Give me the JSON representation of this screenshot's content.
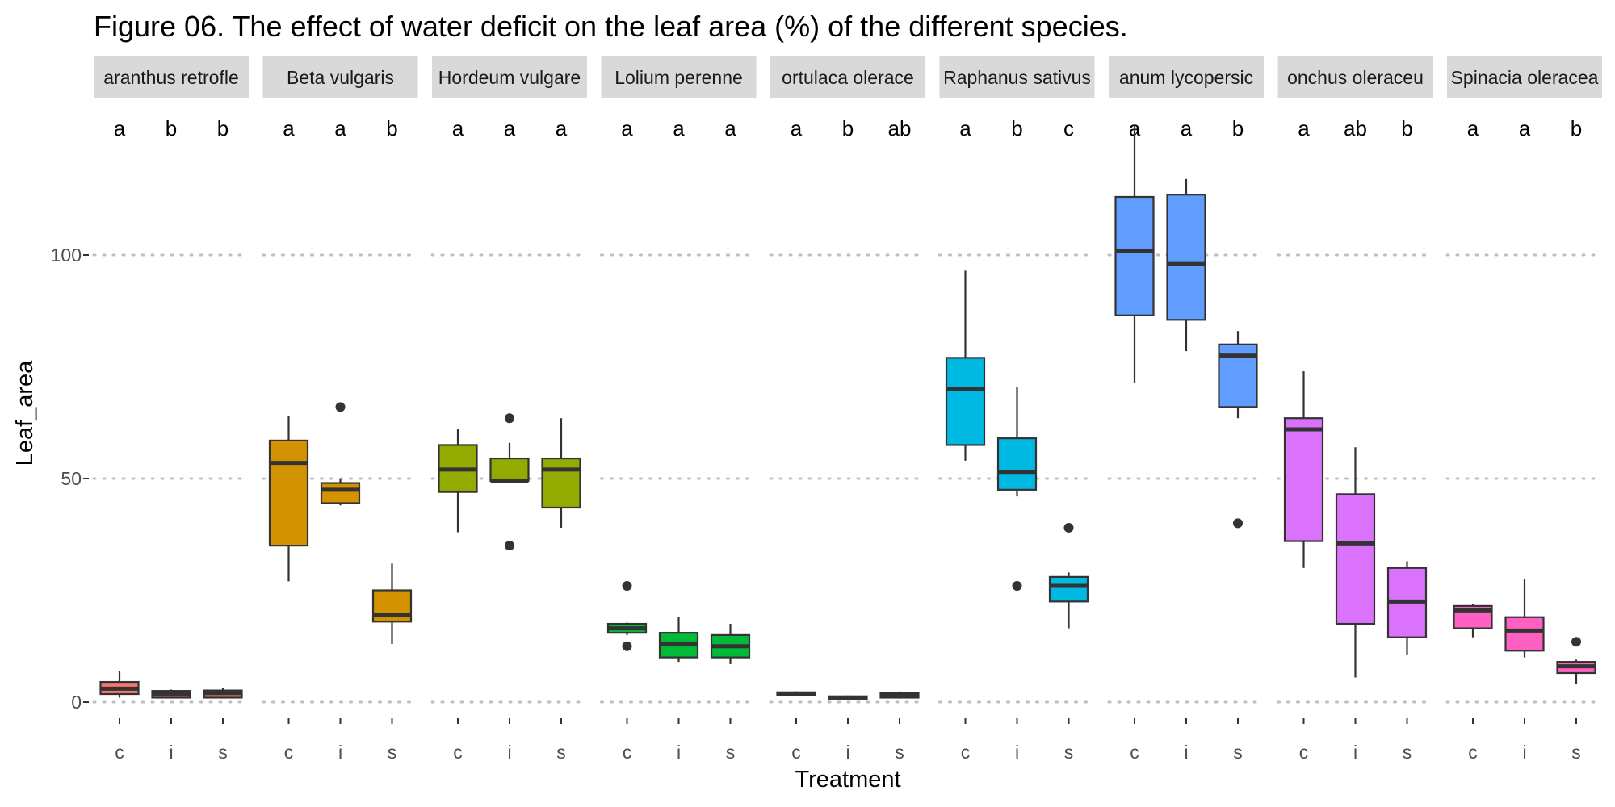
{
  "chart_data": {
    "type": "boxplot",
    "title": "Figure 06. The effect of water deficit  on the leaf area (%) of the different species.",
    "xlabel": "Treatment",
    "ylabel": "Leaf_area",
    "ylim": [
      -4,
      133
    ],
    "yticks": [
      0,
      50,
      100
    ],
    "grid": "horizontal dotted major",
    "legend": "none",
    "treatments": [
      "c",
      "i",
      "s"
    ],
    "panels": [
      {
        "species": "Amaranthus retroflexus",
        "strip_label": "aranthus retrofle",
        "color": "#F8766D",
        "letters": [
          "a",
          "b",
          "b"
        ],
        "boxes": [
          {
            "min": 1.0,
            "q1": 1.8,
            "median": 3.0,
            "q3": 4.5,
            "max": 7.0,
            "outliers": []
          },
          {
            "min": 0.8,
            "q1": 1.0,
            "median": 1.8,
            "q3": 2.5,
            "max": 2.8,
            "outliers": []
          },
          {
            "min": 0.8,
            "q1": 1.0,
            "median": 2.0,
            "q3": 2.6,
            "max": 3.2,
            "outliers": []
          }
        ]
      },
      {
        "species": "Beta vulgaris",
        "strip_label": "Beta vulgaris",
        "color": "#D39200",
        "letters": [
          "a",
          "a",
          "b"
        ],
        "boxes": [
          {
            "min": 27,
            "q1": 35,
            "median": 53.5,
            "q3": 58.5,
            "max": 64,
            "outliers": []
          },
          {
            "min": 44,
            "q1": 44.5,
            "median": 47.5,
            "q3": 49,
            "max": 50,
            "outliers": [
              66
            ]
          },
          {
            "min": 13,
            "q1": 18,
            "median": 19.5,
            "q3": 25,
            "max": 31,
            "outliers": []
          }
        ]
      },
      {
        "species": "Hordeum vulgare",
        "strip_label": "Hordeum vulgare",
        "color": "#93AA00",
        "letters": [
          "a",
          "a",
          "a"
        ],
        "boxes": [
          {
            "min": 38,
            "q1": 47,
            "median": 52,
            "q3": 57.5,
            "max": 61,
            "outliers": []
          },
          {
            "min": 49,
            "q1": 49.5,
            "median": 49.5,
            "q3": 54.5,
            "max": 58,
            "outliers": [
              35,
              63.5
            ]
          },
          {
            "min": 39,
            "q1": 43.5,
            "median": 52,
            "q3": 54.5,
            "max": 63.5,
            "outliers": []
          }
        ]
      },
      {
        "species": "Lolium perenne",
        "strip_label": "Lolium perenne",
        "color": "#00BA38",
        "letters": [
          "a",
          "a",
          "a"
        ],
        "boxes": [
          {
            "min": 15,
            "q1": 15.5,
            "median": 16.5,
            "q3": 17.5,
            "max": 17.8,
            "outliers": [
              12.5,
              26
            ]
          },
          {
            "min": 9,
            "q1": 10,
            "median": 13,
            "q3": 15.5,
            "max": 19,
            "outliers": []
          },
          {
            "min": 8.5,
            "q1": 10,
            "median": 12.5,
            "q3": 15,
            "max": 17.5,
            "outliers": []
          }
        ]
      },
      {
        "species": "Portulaca oleracea",
        "strip_label": "ortulaca olerace",
        "color": "#00C19F",
        "letters": [
          "a",
          "b",
          "ab"
        ],
        "boxes": [
          {
            "min": 1.4,
            "q1": 1.6,
            "median": 1.9,
            "q3": 2.2,
            "max": 2.4,
            "outliers": []
          },
          {
            "min": 0.4,
            "q1": 0.6,
            "median": 1.0,
            "q3": 1.3,
            "max": 1.5,
            "outliers": []
          },
          {
            "min": 0.8,
            "q1": 1.0,
            "median": 1.5,
            "q3": 2.0,
            "max": 2.4,
            "outliers": []
          }
        ]
      },
      {
        "species": "Raphanus sativus",
        "strip_label": "Raphanus sativus",
        "color": "#00B9E3",
        "letters": [
          "a",
          "b",
          "c"
        ],
        "boxes": [
          {
            "min": 54,
            "q1": 57.5,
            "median": 70,
            "q3": 77,
            "max": 96.5,
            "outliers": []
          },
          {
            "min": 46,
            "q1": 47.5,
            "median": 51.5,
            "q3": 59,
            "max": 70.5,
            "outliers": [
              26
            ]
          },
          {
            "min": 16.5,
            "q1": 22.5,
            "median": 26,
            "q3": 28,
            "max": 29,
            "outliers": [
              39
            ]
          }
        ]
      },
      {
        "species": "Solanum lycopersicum",
        "strip_label": "anum lycopersic",
        "color": "#619CFF",
        "letters": [
          "a",
          "a",
          "b"
        ],
        "boxes": [
          {
            "min": 71.5,
            "q1": 86.5,
            "median": 101,
            "q3": 113,
            "max": 129,
            "outliers": []
          },
          {
            "min": 78.5,
            "q1": 85.5,
            "median": 98,
            "q3": 113.5,
            "max": 117,
            "outliers": []
          },
          {
            "min": 63.5,
            "q1": 66,
            "median": 77.5,
            "q3": 80,
            "max": 83,
            "outliers": [
              40
            ]
          }
        ]
      },
      {
        "species": "Sonchus oleraceus",
        "strip_label": "onchus oleraceu",
        "color": "#DB72FB",
        "letters": [
          "a",
          "ab",
          "b"
        ],
        "boxes": [
          {
            "min": 30,
            "q1": 36,
            "median": 61,
            "q3": 63.5,
            "max": 74,
            "outliers": []
          },
          {
            "min": 5.5,
            "q1": 17.5,
            "median": 35.5,
            "q3": 46.5,
            "max": 57,
            "outliers": []
          },
          {
            "min": 10.5,
            "q1": 14.5,
            "median": 22.5,
            "q3": 30,
            "max": 31.5,
            "outliers": []
          }
        ]
      },
      {
        "species": "Spinacia oleracea",
        "strip_label": "Spinacia oleracea",
        "color": "#FF61C3",
        "letters": [
          "a",
          "a",
          "b"
        ],
        "boxes": [
          {
            "min": 14.5,
            "q1": 16.5,
            "median": 20.5,
            "q3": 21.5,
            "max": 22,
            "outliers": []
          },
          {
            "min": 10,
            "q1": 11.5,
            "median": 16,
            "q3": 19,
            "max": 27.5,
            "outliers": []
          },
          {
            "min": 4,
            "q1": 6.5,
            "median": 8,
            "q3": 9,
            "max": 9.5,
            "outliers": [
              13.5
            ]
          }
        ]
      }
    ]
  }
}
